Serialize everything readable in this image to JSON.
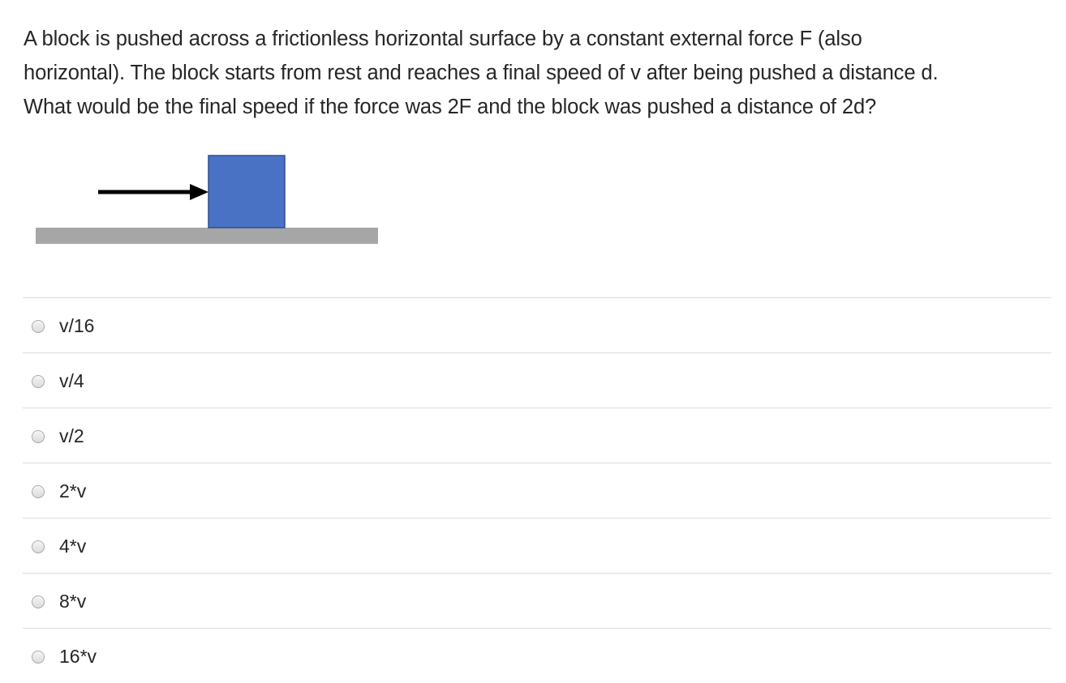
{
  "question": {
    "lines": [
      "A block is pushed across a frictionless horizontal surface by a constant external force F (also",
      "horizontal).  The block starts from rest and reaches a final speed of v after being pushed a distance d.",
      "What would be the final speed if the force was 2F and the block was pushed a distance of 2d?"
    ]
  },
  "figure": {
    "block_color": "#4a72c4",
    "block_border_color": "#2f4f8f",
    "surface_color": "#a6a6a6",
    "arrow_color": "#000000"
  },
  "answers": [
    {
      "label": "v/16"
    },
    {
      "label": "v/4"
    },
    {
      "label": "v/2"
    },
    {
      "label": "2*v"
    },
    {
      "label": "4*v"
    },
    {
      "label": "8*v"
    },
    {
      "label": "16*v"
    }
  ]
}
